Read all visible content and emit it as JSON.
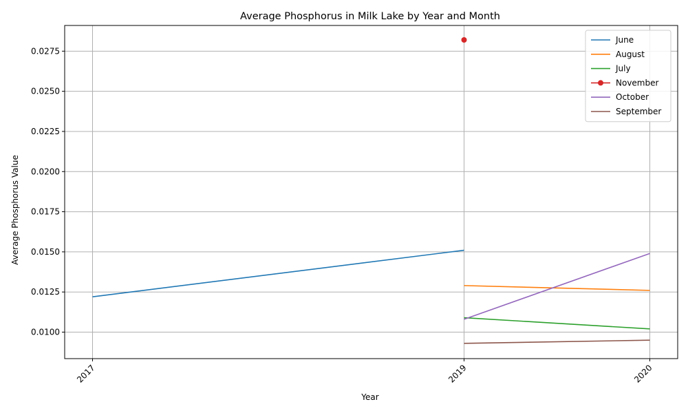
{
  "chart_data": {
    "type": "line",
    "title": "Average Phosphorus in Milk Lake by Year and Month",
    "xlabel": "Year",
    "ylabel": "Average Phosphorus Value",
    "xlim": [
      2016.85,
      2020.15
    ],
    "ylim": [
      0.00835,
      0.0291
    ],
    "x_ticks": [
      "2017",
      "2019",
      "2020"
    ],
    "y_ticks": [
      "0.0100",
      "0.0125",
      "0.0150",
      "0.0175",
      "0.0200",
      "0.0225",
      "0.0250",
      "0.0275"
    ],
    "grid": true,
    "legend_position": "top-right",
    "series": [
      {
        "name": "June",
        "color": "#1f77b4",
        "marker": "none",
        "x": [
          2017,
          2019
        ],
        "y": [
          0.0122,
          0.0151
        ]
      },
      {
        "name": "August",
        "color": "#ff7f0e",
        "marker": "none",
        "x": [
          2019,
          2020
        ],
        "y": [
          0.0129,
          0.0126
        ]
      },
      {
        "name": "July",
        "color": "#2ca02c",
        "marker": "none",
        "x": [
          2019,
          2020
        ],
        "y": [
          0.0109,
          0.0102
        ]
      },
      {
        "name": "November",
        "color": "#d62728",
        "marker": "circle",
        "x": [
          2019
        ],
        "y": [
          0.0282
        ]
      },
      {
        "name": "October",
        "color": "#9467bd",
        "marker": "none",
        "x": [
          2019,
          2020
        ],
        "y": [
          0.0108,
          0.0149
        ]
      },
      {
        "name": "September",
        "color": "#8c564b",
        "marker": "none",
        "x": [
          2019,
          2020
        ],
        "y": [
          0.0093,
          0.0095
        ]
      }
    ]
  }
}
